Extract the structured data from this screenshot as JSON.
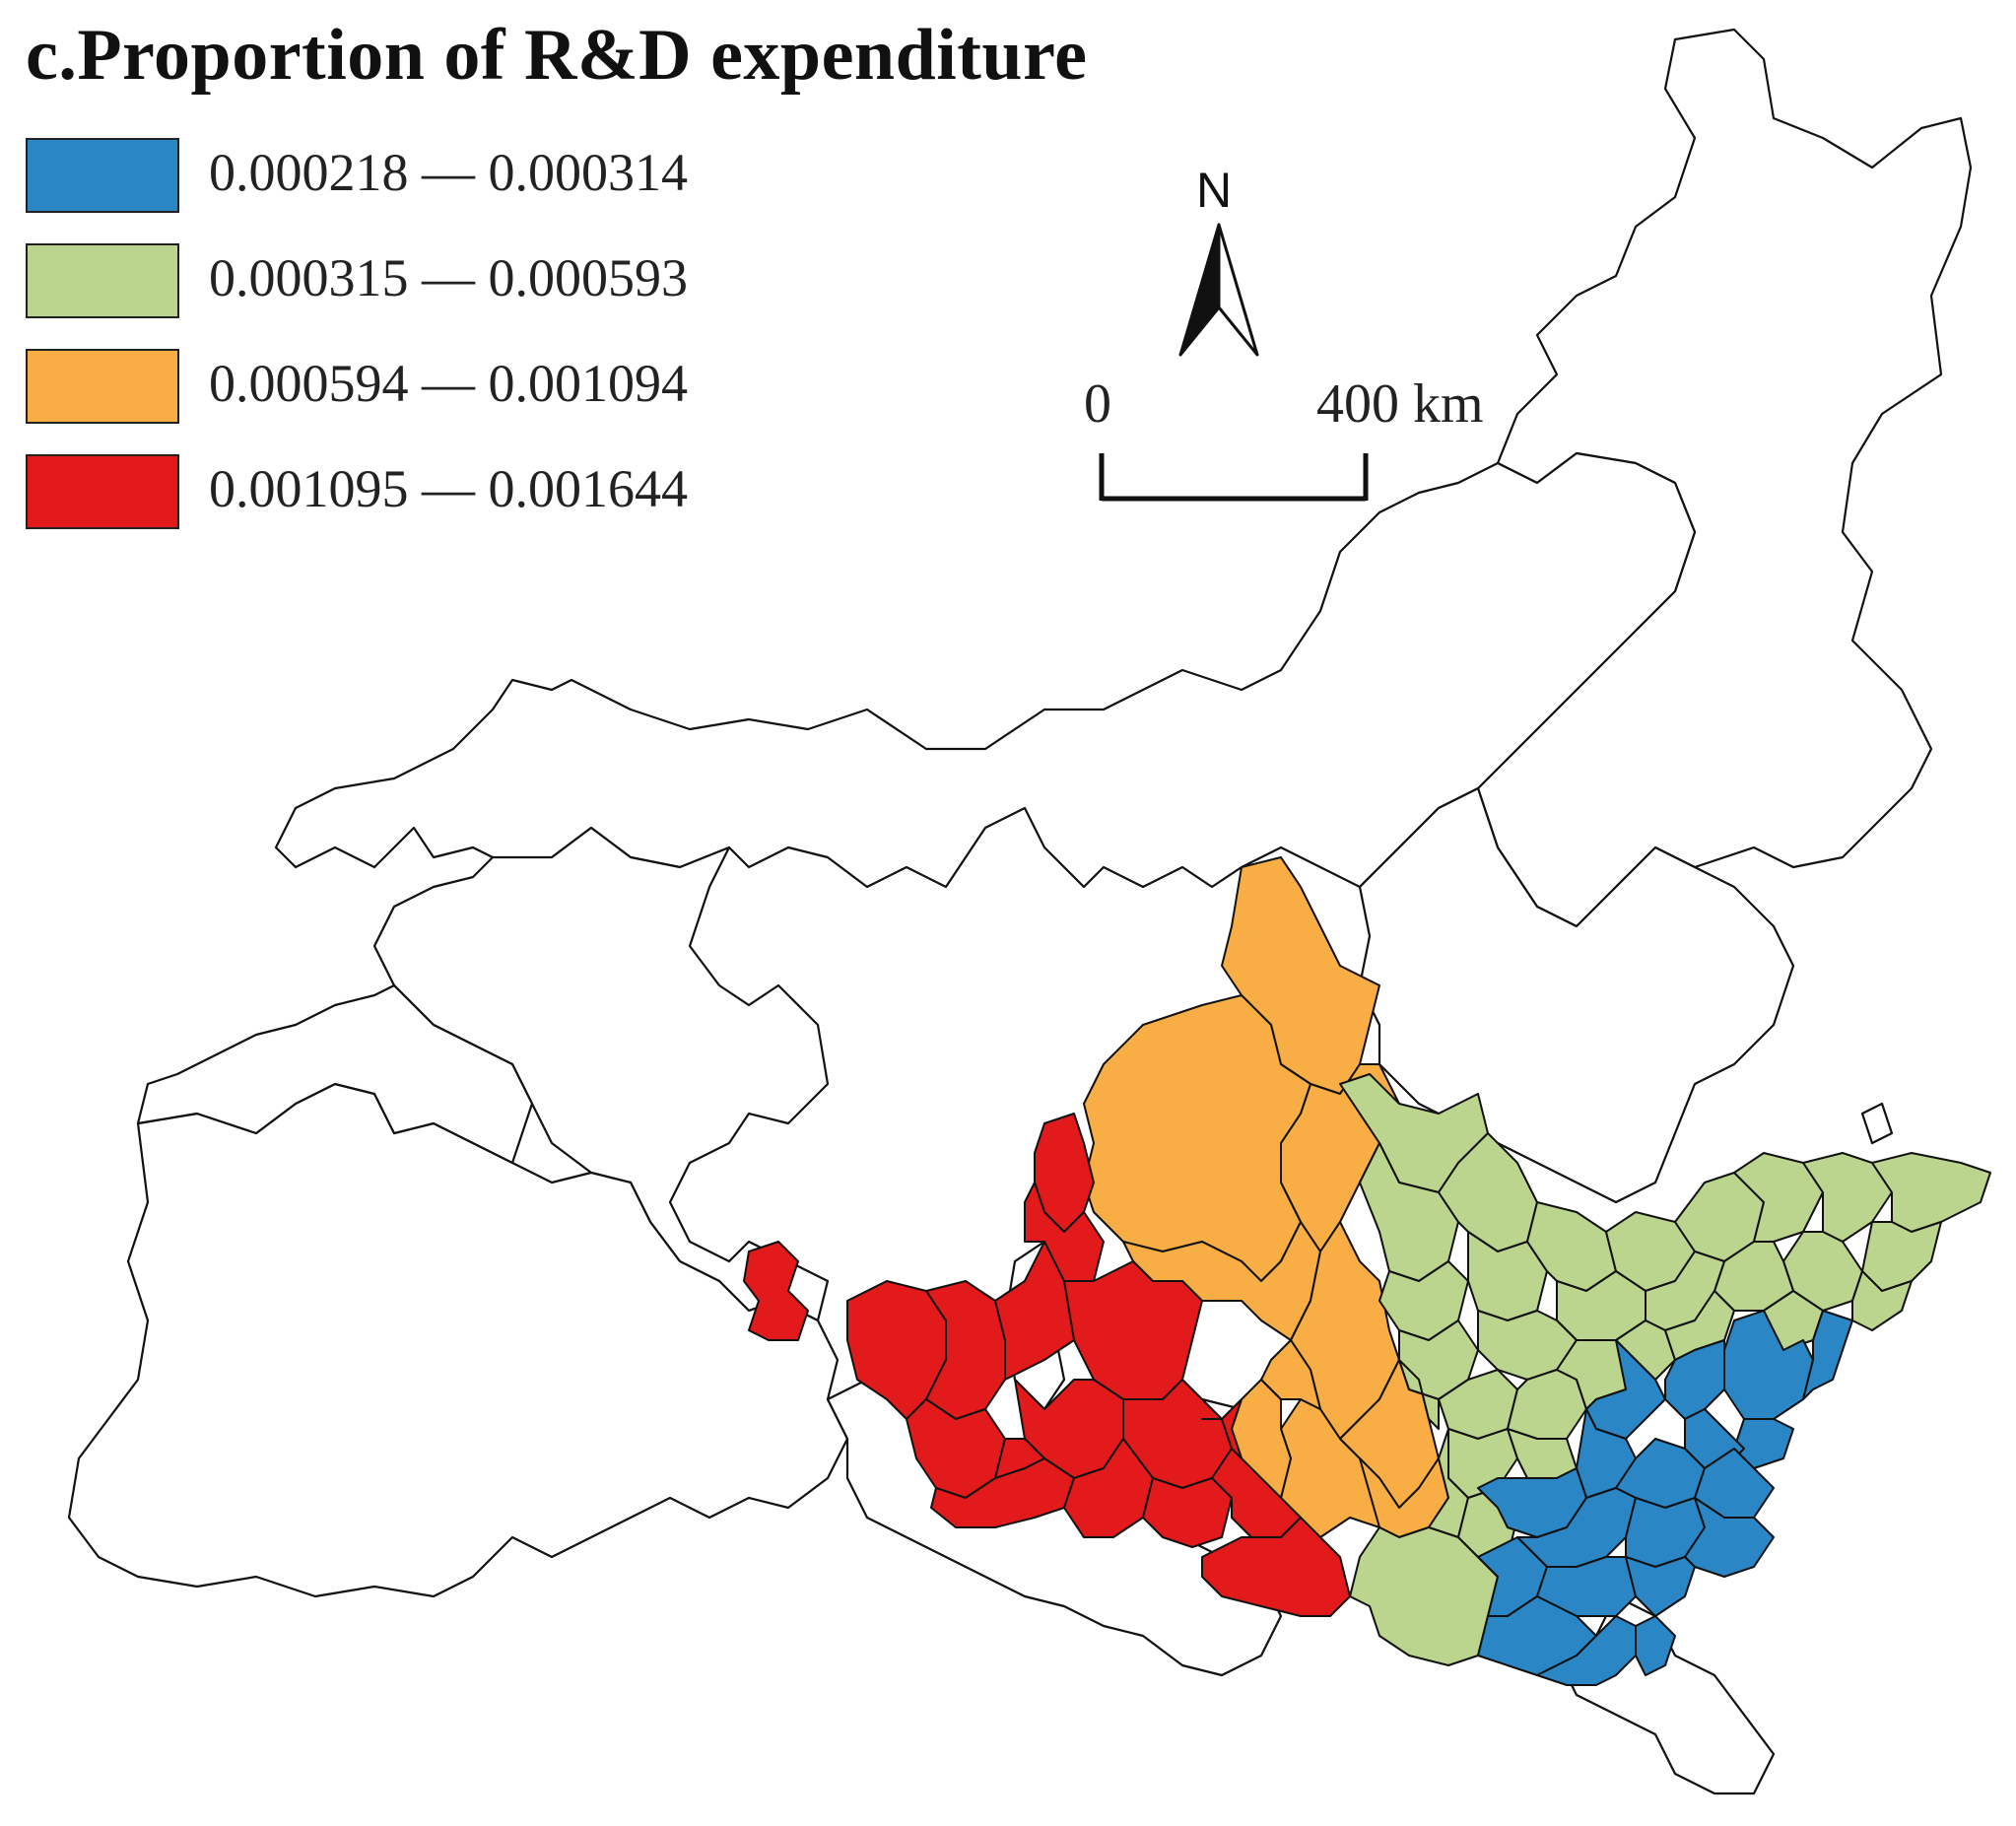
{
  "title": "c.Proportion of R&D expenditure",
  "legend": {
    "items": [
      {
        "label": "0.000218 — 0.000314",
        "color": "#2b86c5"
      },
      {
        "label": "0.000315 — 0.000593",
        "color": "#bcd58e"
      },
      {
        "label": "0.000594 — 0.001094",
        "color": "#f8ad45"
      },
      {
        "label": "0.001095 — 0.001644",
        "color": "#e31a1c"
      }
    ]
  },
  "north_arrow": {
    "label": "N"
  },
  "scale_bar": {
    "start_label": "0",
    "end_label": "400 km"
  },
  "colors": {
    "outline": "#111111",
    "background": "#ffffff",
    "no_data": "#ffffff"
  }
}
